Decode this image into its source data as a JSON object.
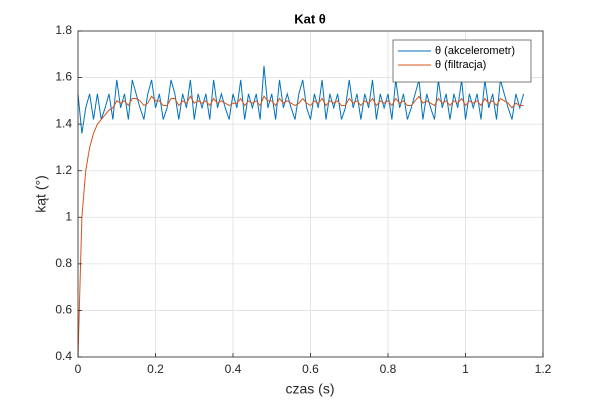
{
  "chart_data": {
    "type": "line",
    "title": "Kat θ",
    "xlabel": "czas (s)",
    "ylabel": "kąt (°)",
    "x": [
      0,
      0.01,
      0.02,
      0.03,
      0.04,
      0.05,
      0.06,
      0.07,
      0.08,
      0.09,
      0.1,
      0.11,
      0.12,
      0.13,
      0.14,
      0.15,
      0.16,
      0.17,
      0.18,
      0.19,
      0.2,
      0.21,
      0.22,
      0.23,
      0.24,
      0.25,
      0.26,
      0.27,
      0.28,
      0.29,
      0.3,
      0.31,
      0.32,
      0.33,
      0.34,
      0.35,
      0.36,
      0.37,
      0.38,
      0.39,
      0.4,
      0.41,
      0.42,
      0.43,
      0.44,
      0.45,
      0.46,
      0.47,
      0.48,
      0.49,
      0.5,
      0.51,
      0.52,
      0.53,
      0.54,
      0.55,
      0.56,
      0.57,
      0.58,
      0.59,
      0.6,
      0.61,
      0.62,
      0.63,
      0.64,
      0.65,
      0.66,
      0.67,
      0.68,
      0.69,
      0.7,
      0.71,
      0.72,
      0.73,
      0.74,
      0.75,
      0.76,
      0.77,
      0.78,
      0.79,
      0.8,
      0.81,
      0.82,
      0.83,
      0.84,
      0.85,
      0.86,
      0.87,
      0.88,
      0.89,
      0.9,
      0.91,
      0.92,
      0.93,
      0.94,
      0.95,
      0.96,
      0.97,
      0.98,
      0.99,
      1,
      1.01,
      1.02,
      1.03,
      1.04,
      1.05,
      1.06,
      1.07,
      1.08,
      1.09,
      1.1,
      1.11,
      1.12,
      1.13,
      1.14,
      1.15
    ],
    "series": [
      {
        "name": "θ (akcelerometr)",
        "color": "#0072BD",
        "values": [
          1.53,
          1.36,
          1.47,
          1.53,
          1.42,
          1.53,
          1.42,
          1.47,
          1.53,
          1.42,
          1.59,
          1.47,
          1.53,
          1.42,
          1.59,
          1.53,
          1.47,
          1.42,
          1.53,
          1.59,
          1.47,
          1.53,
          1.42,
          1.47,
          1.59,
          1.53,
          1.42,
          1.53,
          1.47,
          1.59,
          1.42,
          1.53,
          1.47,
          1.53,
          1.42,
          1.59,
          1.47,
          1.53,
          1.47,
          1.42,
          1.53,
          1.47,
          1.59,
          1.42,
          1.53,
          1.47,
          1.53,
          1.42,
          1.65,
          1.47,
          1.53,
          1.42,
          1.59,
          1.47,
          1.53,
          1.47,
          1.42,
          1.53,
          1.59,
          1.47,
          1.42,
          1.53,
          1.47,
          1.59,
          1.42,
          1.53,
          1.47,
          1.53,
          1.42,
          1.47,
          1.59,
          1.47,
          1.53,
          1.42,
          1.53,
          1.47,
          1.59,
          1.42,
          1.53,
          1.47,
          1.53,
          1.42,
          1.59,
          1.47,
          1.53,
          1.42,
          1.47,
          1.53,
          1.59,
          1.42,
          1.53,
          1.47,
          1.42,
          1.59,
          1.47,
          1.53,
          1.42,
          1.53,
          1.47,
          1.59,
          1.42,
          1.53,
          1.47,
          1.53,
          1.42,
          1.59,
          1.47,
          1.53,
          1.42,
          1.59,
          1.53,
          1.47,
          1.42,
          1.53,
          1.47,
          1.53
        ]
      },
      {
        "name": "θ (filtracja)",
        "color": "#D95319",
        "values": [
          0.4,
          1.0,
          1.2,
          1.3,
          1.36,
          1.4,
          1.42,
          1.44,
          1.46,
          1.47,
          1.5,
          1.49,
          1.5,
          1.48,
          1.51,
          1.51,
          1.5,
          1.48,
          1.49,
          1.52,
          1.5,
          1.5,
          1.48,
          1.48,
          1.51,
          1.51,
          1.48,
          1.5,
          1.49,
          1.52,
          1.49,
          1.5,
          1.49,
          1.5,
          1.48,
          1.51,
          1.49,
          1.5,
          1.49,
          1.48,
          1.49,
          1.49,
          1.51,
          1.48,
          1.5,
          1.49,
          1.5,
          1.48,
          1.52,
          1.5,
          1.5,
          1.48,
          1.51,
          1.49,
          1.5,
          1.49,
          1.48,
          1.49,
          1.51,
          1.49,
          1.48,
          1.5,
          1.49,
          1.51,
          1.48,
          1.5,
          1.49,
          1.5,
          1.48,
          1.48,
          1.51,
          1.49,
          1.5,
          1.48,
          1.5,
          1.49,
          1.51,
          1.48,
          1.5,
          1.49,
          1.5,
          1.48,
          1.51,
          1.49,
          1.5,
          1.48,
          1.48,
          1.5,
          1.52,
          1.49,
          1.5,
          1.49,
          1.48,
          1.51,
          1.49,
          1.5,
          1.48,
          1.5,
          1.49,
          1.51,
          1.48,
          1.5,
          1.49,
          1.5,
          1.48,
          1.51,
          1.49,
          1.5,
          1.48,
          1.51,
          1.5,
          1.49,
          1.47,
          1.49,
          1.48,
          1.48
        ]
      }
    ],
    "xlim": [
      0,
      1.2
    ],
    "xticks": [
      0,
      0.2,
      0.4,
      0.6,
      0.8,
      1,
      1.2
    ],
    "ylim": [
      0.4,
      1.8
    ],
    "yticks": [
      0.4,
      0.6,
      0.8,
      1,
      1.2,
      1.4,
      1.6,
      1.8
    ],
    "grid": true,
    "legend": "top-right"
  }
}
